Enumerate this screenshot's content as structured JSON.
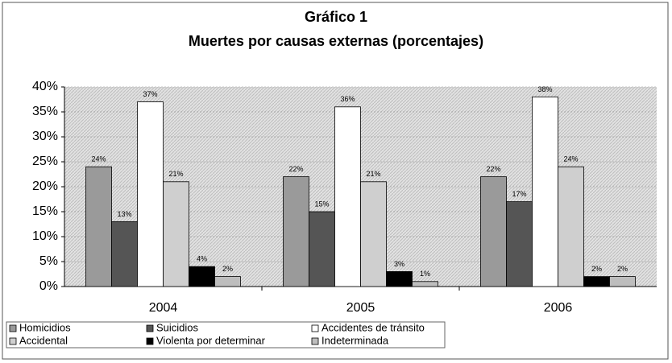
{
  "chart_data": {
    "type": "bar",
    "title": "Gráfico 1",
    "subtitle": "Muertes por causas externas (porcentajes)",
    "categories": [
      "2004",
      "2005",
      "2006"
    ],
    "series": [
      {
        "name": "Homicidios",
        "color": "#9a9a9a",
        "values": [
          24,
          22,
          22
        ],
        "value_labels": [
          "24%",
          "22%",
          "22%"
        ]
      },
      {
        "name": "Suicidios",
        "color": "#555555",
        "values": [
          13,
          15,
          17
        ],
        "value_labels": [
          "13%",
          "15%",
          "17%"
        ]
      },
      {
        "name": "Accidentes de tránsito",
        "color": "#ffffff",
        "values": [
          37,
          36,
          38
        ],
        "value_labels": [
          "37%",
          "36%",
          "38%"
        ]
      },
      {
        "name": "Accidental",
        "color": "#cfcfcf",
        "values": [
          21,
          21,
          24
        ],
        "value_labels": [
          "21%",
          "21%",
          "24%"
        ]
      },
      {
        "name": "Violenta por determinar",
        "color": "#000000",
        "values": [
          4,
          3,
          2
        ],
        "value_labels": [
          "4%",
          "3%",
          "2%"
        ]
      },
      {
        "name": "Indeterminada",
        "color": "#bdbdbd",
        "values": [
          2,
          1,
          2
        ],
        "value_labels": [
          "2%",
          "1%",
          "2%"
        ]
      }
    ],
    "ylim": [
      0,
      40
    ],
    "yticks": [
      {
        "value": 0,
        "label": "0%"
      },
      {
        "value": 5,
        "label": "5%"
      },
      {
        "value": 10,
        "label": "10%"
      },
      {
        "value": 15,
        "label": "15%"
      },
      {
        "value": 20,
        "label": "20%"
      },
      {
        "value": 25,
        "label": "25%"
      },
      {
        "value": 30,
        "label": "30%"
      },
      {
        "value": 35,
        "label": "35%"
      },
      {
        "value": 40,
        "label": "40%"
      }
    ],
    "grid": true,
    "legend": "bottom"
  }
}
